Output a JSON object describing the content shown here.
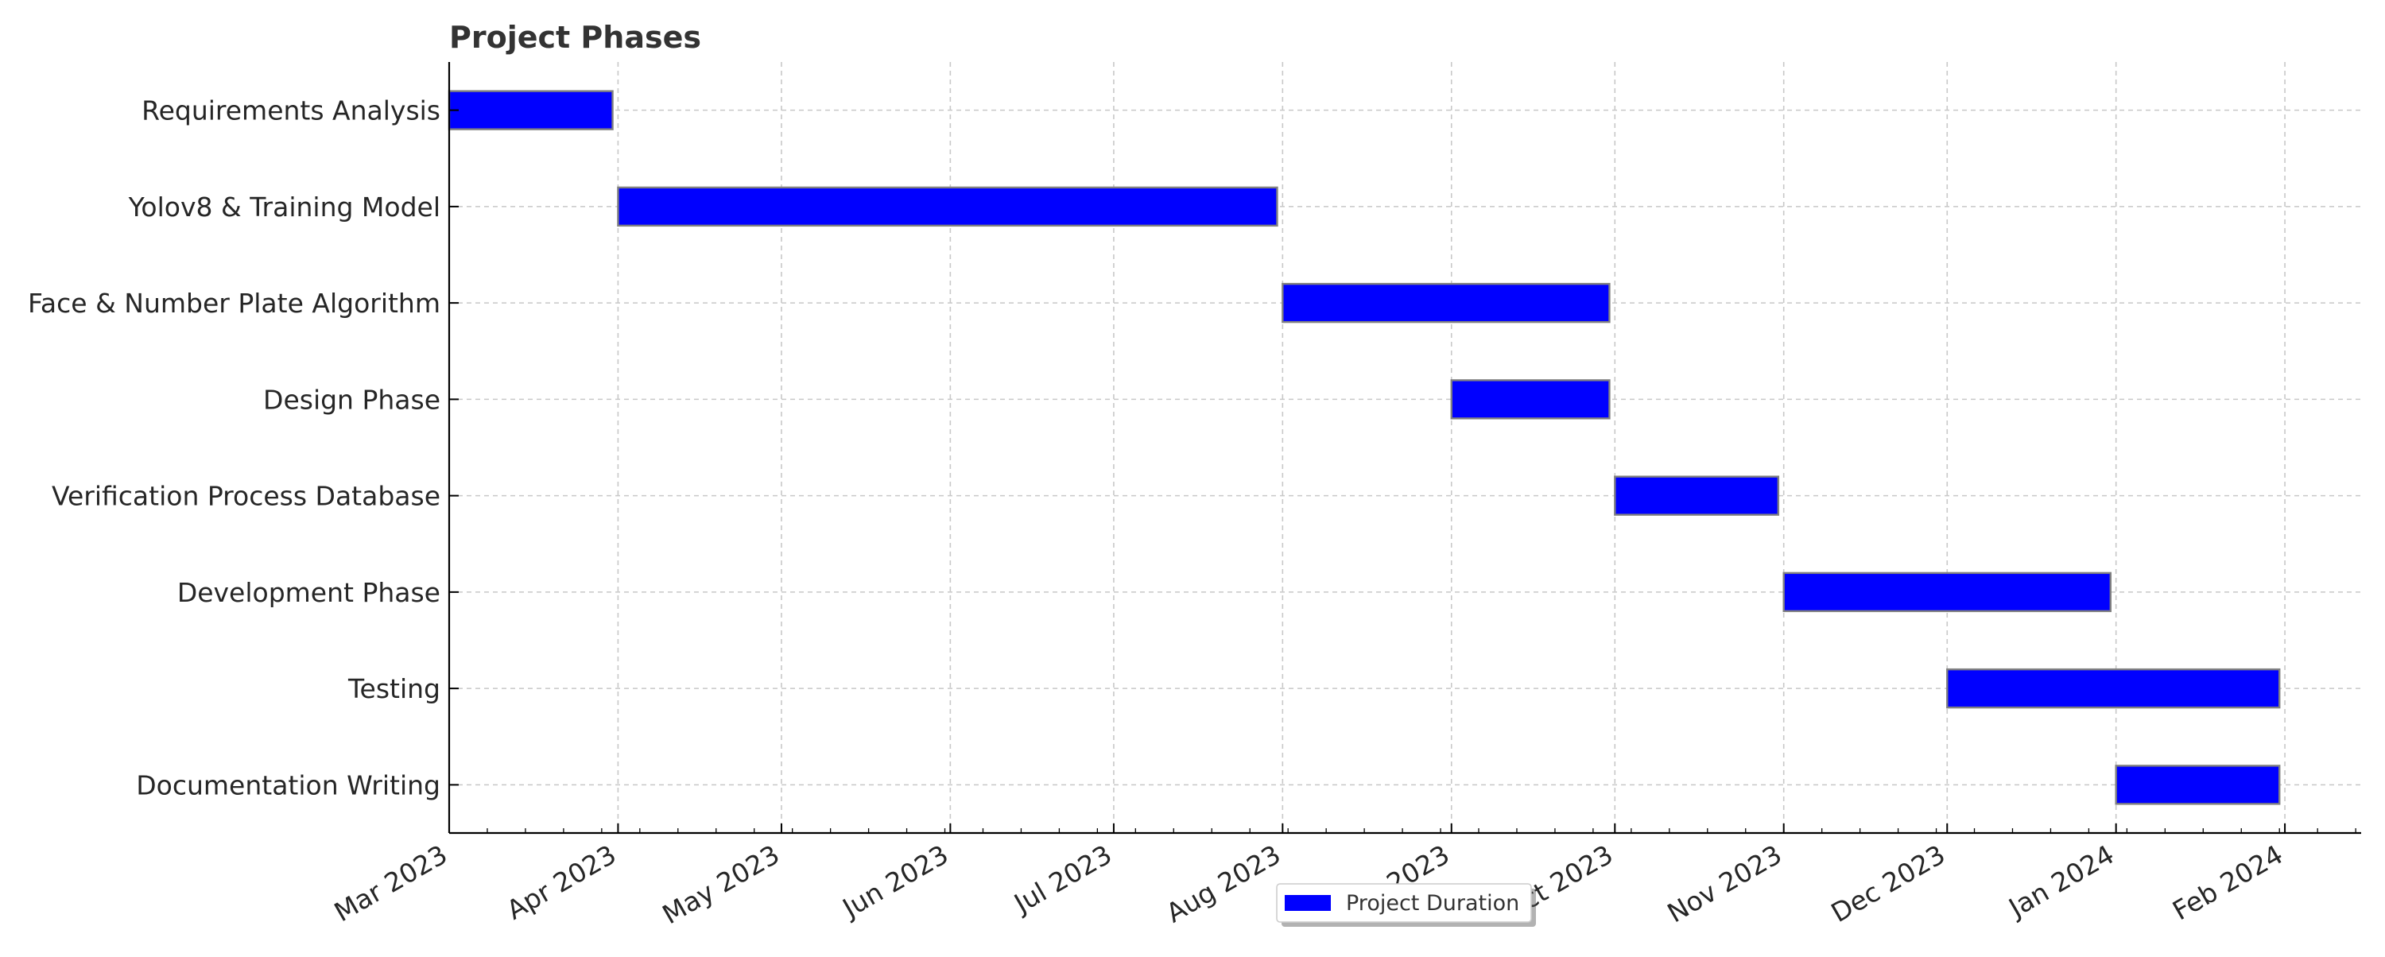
{
  "chart_data": {
    "type": "gantt",
    "title": "Project Phases",
    "xlabel": "",
    "ylabel": "",
    "x_axis": {
      "type": "date",
      "range": [
        "2023-03-01",
        "2024-02-15"
      ],
      "tick_labels": [
        {
          "date": "2023-03-01",
          "label": "Mar 2023"
        },
        {
          "date": "2023-04-01",
          "label": "Apr 2023"
        },
        {
          "date": "2023-05-01",
          "label": "May 2023"
        },
        {
          "date": "2023-06-01",
          "label": "Jun 2023"
        },
        {
          "date": "2023-07-01",
          "label": "Jul 2023"
        },
        {
          "date": "2023-08-01",
          "label": "Aug 2023"
        },
        {
          "date": "2023-09-01",
          "label": "Sep 2023"
        },
        {
          "date": "2023-10-01",
          "label": "Oct 2023"
        },
        {
          "date": "2023-11-01",
          "label": "Nov 2023"
        },
        {
          "date": "2023-12-01",
          "label": "Dec 2023"
        },
        {
          "date": "2024-01-01",
          "label": "Jan 2024"
        },
        {
          "date": "2024-02-01",
          "label": "Feb 2024"
        }
      ]
    },
    "grid": true,
    "legend": {
      "entries": [
        "Project Duration"
      ],
      "placement": "bottom-center"
    },
    "colors": {
      "bar": "#0000ff",
      "bar_edge": "#808080",
      "grid": "#c8c8c8",
      "axis": "#000000"
    },
    "tasks": [
      {
        "name": "Requirements Analysis",
        "start": "2023-03-01",
        "end": "2023-03-31"
      },
      {
        "name": "Yolov8 & Training Model",
        "start": "2023-04-01",
        "end": "2023-07-31"
      },
      {
        "name": "Face & Number Plate Algorithm",
        "start": "2023-08-01",
        "end": "2023-09-30"
      },
      {
        "name": "Design Phase",
        "start": "2023-09-01",
        "end": "2023-09-30"
      },
      {
        "name": "Verification Process Database",
        "start": "2023-10-01",
        "end": "2023-10-31"
      },
      {
        "name": "Development Phase",
        "start": "2023-11-01",
        "end": "2023-12-31"
      },
      {
        "name": "Testing",
        "start": "2023-12-01",
        "end": "2024-01-31"
      },
      {
        "name": "Documentation Writing",
        "start": "2024-01-01",
        "end": "2024-01-31"
      }
    ]
  }
}
